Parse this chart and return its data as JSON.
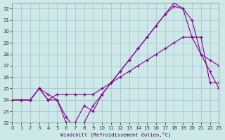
{
  "xlabel": "Windchill (Refroidissement éolien,°C)",
  "bg_color": "#cce8e8",
  "grid_color": "#aabbcc",
  "line_color": "#880088",
  "xlim": [
    0,
    23
  ],
  "ylim": [
    22,
    32.5
  ],
  "xticks": [
    0,
    1,
    2,
    3,
    4,
    5,
    6,
    7,
    8,
    9,
    10,
    11,
    12,
    13,
    14,
    15,
    16,
    17,
    18,
    19,
    20,
    21,
    22,
    23
  ],
  "yticks": [
    22,
    23,
    24,
    25,
    26,
    27,
    28,
    29,
    30,
    31,
    32
  ],
  "line1_x": [
    0,
    1,
    2,
    3,
    4,
    5,
    6,
    7,
    8,
    9,
    10,
    11,
    12,
    13,
    14,
    15,
    16,
    17,
    18,
    19,
    20,
    21,
    22,
    23
  ],
  "line1_y": [
    24.0,
    24.0,
    24.0,
    25.0,
    24.0,
    24.5,
    24.5,
    24.5,
    24.5,
    24.5,
    25.0,
    25.5,
    26.0,
    26.5,
    27.0,
    27.5,
    28.0,
    28.5,
    29.0,
    29.5,
    29.5,
    29.5,
    25.5,
    25.5
  ],
  "line2_x": [
    0,
    1,
    2,
    3,
    4,
    5,
    6,
    7,
    8,
    9,
    10,
    11,
    12,
    13,
    14,
    15,
    16,
    17,
    18,
    19,
    20,
    21,
    22,
    23
  ],
  "line2_y": [
    24.0,
    24.0,
    24.0,
    25.0,
    24.5,
    24.0,
    22.5,
    21.5,
    22.0,
    23.5,
    24.5,
    25.5,
    26.5,
    27.5,
    28.5,
    29.5,
    30.5,
    31.5,
    32.2,
    32.0,
    31.0,
    28.0,
    26.5,
    25.0
  ],
  "line3_x": [
    0,
    2,
    3,
    4,
    5,
    6,
    7,
    8,
    9,
    10,
    11,
    12,
    13,
    14,
    15,
    16,
    17,
    18,
    19,
    20,
    21,
    22,
    23
  ],
  "line3_y": [
    24.0,
    24.0,
    25.0,
    24.0,
    24.0,
    22.0,
    22.0,
    23.5,
    23.0,
    24.5,
    25.5,
    26.5,
    27.5,
    28.5,
    29.5,
    30.5,
    31.5,
    32.5,
    32.0,
    29.5,
    28.0,
    27.5,
    27.0
  ]
}
